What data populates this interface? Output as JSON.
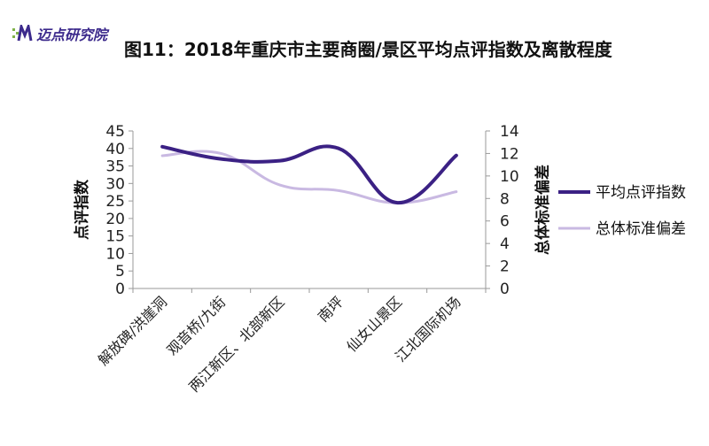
{
  "logo": {
    "text": "迈点研究院",
    "mark": "M"
  },
  "title": "图11：2018年重庆市主要商圈/景区平均点评指数及离散程度",
  "chart_data": {
    "type": "line",
    "categories": [
      "解放碑/洪崖洞",
      "观音桥/九街",
      "两江新区、北部新区",
      "南坪",
      "仙女山景区",
      "江北国际机场"
    ],
    "series": [
      {
        "name": "平均点评指数",
        "axis": "left",
        "color": "#3b2184",
        "values": [
          40.5,
          37,
          36.5,
          40,
          24.5,
          38
        ]
      },
      {
        "name": "总体标准偏差",
        "axis": "right",
        "color": "#c9b9e2",
        "values": [
          11.8,
          12,
          9.2,
          8.7,
          7.6,
          8.6
        ]
      }
    ],
    "ylabel": "点评指数",
    "y2label": "总体标准偏差",
    "ylim": [
      0,
      45
    ],
    "y2lim": [
      0,
      14
    ],
    "yticks": [
      0,
      5,
      10,
      15,
      20,
      25,
      30,
      35,
      40,
      45
    ],
    "y2ticks": [
      0,
      2,
      4,
      6,
      8,
      10,
      12,
      14
    ],
    "grid": false,
    "legend": "right",
    "smooth": true
  }
}
